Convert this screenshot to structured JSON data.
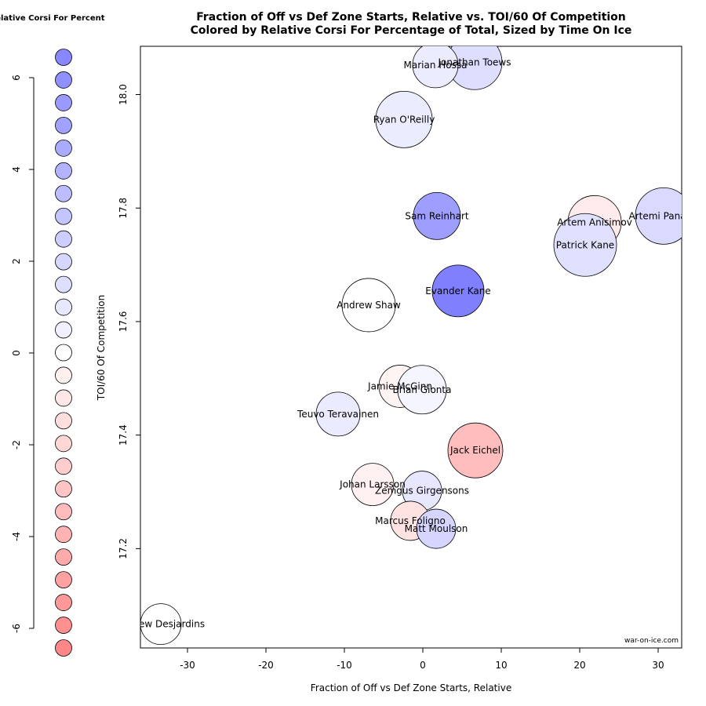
{
  "chart_data": {
    "type": "scatter",
    "title": "Fraction of Off vs Def Zone Starts, Relative vs. TOI/60 Of Competition",
    "subtitle": "Colored by Relative Corsi For Percentage of Total, Sized by Time On Ice",
    "xlabel": "Fraction of Off vs Def Zone Starts, Relative",
    "ylabel": "TOI/60 Of Competition",
    "xlim": [
      -36,
      33
    ],
    "ylim": [
      17.025,
      18.085
    ],
    "xticks": [
      -30,
      -20,
      -10,
      0,
      10,
      20,
      30
    ],
    "yticks": [
      17.2,
      17.4,
      17.6,
      17.8,
      18.0
    ],
    "grid": false,
    "credit": "war-on-ice.com",
    "points": [
      {
        "name": "Jonathan Toews",
        "x": 6.6,
        "y": 18.057,
        "size": 35,
        "color": "#dedeff"
      },
      {
        "name": "Marian Hossa",
        "x": 1.6,
        "y": 18.052,
        "size": 29,
        "color": "#ececff"
      },
      {
        "name": "Ryan O'Reilly",
        "x": -2.4,
        "y": 17.956,
        "size": 36,
        "color": "#ececff"
      },
      {
        "name": "Sam Reinhart",
        "x": 1.8,
        "y": 17.786,
        "size": 30,
        "color": "#9e9eff"
      },
      {
        "name": "Artem Anisimov",
        "x": 21.9,
        "y": 17.775,
        "size": 34,
        "color": "#ffebeb"
      },
      {
        "name": "Artemi Panarin",
        "x": 30.7,
        "y": 17.786,
        "size": 36,
        "color": "#dadaff"
      },
      {
        "name": "Patrick Kane",
        "x": 20.7,
        "y": 17.735,
        "size": 40,
        "color": "#e0e0ff"
      },
      {
        "name": "Evander Kane",
        "x": 4.5,
        "y": 17.654,
        "size": 33,
        "color": "#8080ff"
      },
      {
        "name": "Andrew Shaw",
        "x": -6.9,
        "y": 17.629,
        "size": 34,
        "color": "#ffffff"
      },
      {
        "name": "Jamie McGinn",
        "x": -2.9,
        "y": 17.486,
        "size": 27,
        "color": "#fff4f4"
      },
      {
        "name": "Brian Gionta",
        "x": -0.1,
        "y": 17.48,
        "size": 31,
        "color": "#f5f5ff"
      },
      {
        "name": "Teuvo Teravainen",
        "x": -10.8,
        "y": 17.437,
        "size": 28,
        "color": "#ebebff"
      },
      {
        "name": "Jack Eichel",
        "x": 6.7,
        "y": 17.373,
        "size": 35,
        "color": "#ffbdbd"
      },
      {
        "name": "Johan Larsson",
        "x": -6.4,
        "y": 17.313,
        "size": 27,
        "color": "#fff1f1"
      },
      {
        "name": "Zemgus Girgensons",
        "x": -0.1,
        "y": 17.302,
        "size": 25,
        "color": "#e7e7ff"
      },
      {
        "name": "Marcus Foligno",
        "x": -1.6,
        "y": 17.249,
        "size": 25,
        "color": "#ffe3e3"
      },
      {
        "name": "Matt Moulson",
        "x": 1.7,
        "y": 17.235,
        "size": 25,
        "color": "#d5d5ff"
      },
      {
        "name": "Andrew Desjardins",
        "x": -33.4,
        "y": 17.067,
        "size": 26,
        "color": "#ffffff"
      }
    ],
    "legend": {
      "title": "Relative Corsi For Percent",
      "range": [
        -6,
        6
      ],
      "ticks": [
        6,
        4,
        2,
        0,
        -2,
        -4,
        -6
      ],
      "swatches": [
        {
          "value": 6.5,
          "color": "#8787ff"
        },
        {
          "value": 6.0,
          "color": "#9090ff"
        },
        {
          "value": 5.5,
          "color": "#9999ff"
        },
        {
          "value": 5.0,
          "color": "#a1a1ff"
        },
        {
          "value": 4.5,
          "color": "#aaaaff"
        },
        {
          "value": 4.0,
          "color": "#b3b3ff"
        },
        {
          "value": 3.5,
          "color": "#bcbcff"
        },
        {
          "value": 3.0,
          "color": "#c4c4ff"
        },
        {
          "value": 2.5,
          "color": "#cdcdff"
        },
        {
          "value": 2.0,
          "color": "#d6d6ff"
        },
        {
          "value": 1.5,
          "color": "#dedeff"
        },
        {
          "value": 1.0,
          "color": "#e7e7ff"
        },
        {
          "value": 0.5,
          "color": "#f0f0ff"
        },
        {
          "value": 0.0,
          "color": "#ffffff"
        },
        {
          "value": -0.5,
          "color": "#fff0f0"
        },
        {
          "value": -1.0,
          "color": "#ffe7e7"
        },
        {
          "value": -1.5,
          "color": "#ffdede"
        },
        {
          "value": -2.0,
          "color": "#ffd6d6"
        },
        {
          "value": -2.5,
          "color": "#ffcdcd"
        },
        {
          "value": -3.0,
          "color": "#ffc4c4"
        },
        {
          "value": -3.5,
          "color": "#ffbcbc"
        },
        {
          "value": -4.0,
          "color": "#ffb3b3"
        },
        {
          "value": -4.5,
          "color": "#ffaaaa"
        },
        {
          "value": -5.0,
          "color": "#ffa1a1"
        },
        {
          "value": -5.5,
          "color": "#ff9999"
        },
        {
          "value": -6.0,
          "color": "#ff9090"
        },
        {
          "value": -6.5,
          "color": "#ff8787"
        }
      ]
    }
  }
}
